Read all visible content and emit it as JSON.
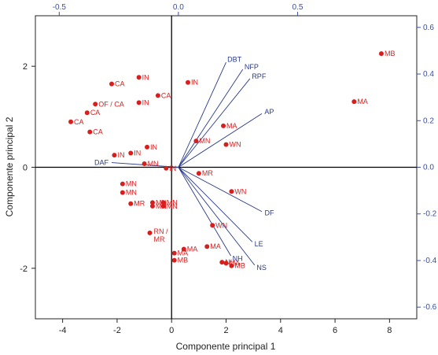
{
  "chart_data": {
    "type": "scatter",
    "title": "",
    "xlabel": "Componente principal 1",
    "ylabel": "Componente principal 2",
    "xlim": [
      -5,
      9
    ],
    "ylim": [
      -3,
      3
    ],
    "x_ticks": [
      "-4",
      "-2",
      "0",
      "2",
      "4",
      "6",
      "8"
    ],
    "y_ticks": [
      "-2",
      "0",
      "2"
    ],
    "secondary_xlim": [
      -0.6,
      1.0
    ],
    "secondary_ylim": [
      -0.65,
      0.65
    ],
    "secondary_x_ticks": [
      "-0.5",
      "0.0",
      "0.5"
    ],
    "secondary_y_ticks": [
      "0.6",
      "0.4",
      "0.2",
      "0.0",
      "-0.2",
      "-0.4",
      "-0.6"
    ],
    "origin_lines": true,
    "grid": false,
    "colors": {
      "points": "#d91e1e",
      "vectors": "#2a3a8a",
      "secondary_axes": "#3a4fa0",
      "primary_axes": "#222222"
    },
    "series": [
      {
        "kind": "points",
        "points": [
          {
            "label": "MB",
            "x": 7.7,
            "y": 2.25
          },
          {
            "label": "MA",
            "x": 6.7,
            "y": 1.3
          },
          {
            "label": "CA",
            "x": -2.2,
            "y": 1.65
          },
          {
            "label": "IN",
            "x": -1.2,
            "y": 1.78
          },
          {
            "label": "IN",
            "x": 0.6,
            "y": 1.68
          },
          {
            "label": "CA",
            "x": -0.5,
            "y": 1.42
          },
          {
            "label": "IN",
            "x": -1.2,
            "y": 1.28
          },
          {
            "label": "OF / CA",
            "x": -2.8,
            "y": 1.25
          },
          {
            "label": "CA",
            "x": -3.1,
            "y": 1.08
          },
          {
            "label": "CA",
            "x": -3.7,
            "y": 0.9
          },
          {
            "label": "CA",
            "x": -3.0,
            "y": 0.7
          },
          {
            "label": "MA",
            "x": 1.9,
            "y": 0.82
          },
          {
            "label": "MN",
            "x": 0.9,
            "y": 0.52
          },
          {
            "label": "WN",
            "x": 2.0,
            "y": 0.45
          },
          {
            "label": "IN",
            "x": -0.9,
            "y": 0.4
          },
          {
            "label": "IN",
            "x": -1.5,
            "y": 0.28
          },
          {
            "label": "IN",
            "x": -2.1,
            "y": 0.24
          },
          {
            "label": "MN",
            "x": -1.0,
            "y": 0.07
          },
          {
            "label": "IN",
            "x": -0.2,
            "y": -0.02
          },
          {
            "label": "MR",
            "x": 1.0,
            "y": -0.12
          },
          {
            "label": "WN",
            "x": 2.2,
            "y": -0.48
          },
          {
            "label": "MN",
            "x": -1.8,
            "y": -0.33
          },
          {
            "label": "MN",
            "x": -1.8,
            "y": -0.5
          },
          {
            "label": "MR",
            "x": -1.5,
            "y": -0.72
          },
          {
            "label": "MN",
            "x": -0.7,
            "y": -0.7
          },
          {
            "label": "MN",
            "x": -0.7,
            "y": -0.77
          },
          {
            "label": "MN",
            "x": -0.3,
            "y": -0.7
          },
          {
            "label": "MN",
            "x": -0.3,
            "y": -0.77
          },
          {
            "label": "WN",
            "x": 1.5,
            "y": -1.15
          },
          {
            "label": "RN / MR",
            "x": -0.8,
            "y": -1.3
          },
          {
            "label": "MA",
            "x": 1.3,
            "y": -1.57
          },
          {
            "label": "MA",
            "x": 0.45,
            "y": -1.62
          },
          {
            "label": "MA",
            "x": 0.1,
            "y": -1.7
          },
          {
            "label": "MB",
            "x": 0.1,
            "y": -1.84
          },
          {
            "label": "NH",
            "x": 1.85,
            "y": -1.88
          },
          {
            "label": "MA",
            "x": 2.0,
            "y": -1.9
          },
          {
            "label": "MB",
            "x": 2.2,
            "y": -1.95
          }
        ]
      },
      {
        "kind": "vectors",
        "vectors": [
          {
            "label": "DBT",
            "x": 0.2,
            "y": 0.45
          },
          {
            "label": "NFP",
            "x": 0.27,
            "y": 0.42
          },
          {
            "label": "RPF",
            "x": 0.3,
            "y": 0.38
          },
          {
            "label": "AP",
            "x": 0.35,
            "y": 0.23
          },
          {
            "label": "DAF",
            "x": -0.28,
            "y": 0.02
          },
          {
            "label": "DF",
            "x": 0.35,
            "y": -0.19
          },
          {
            "label": "LE",
            "x": 0.31,
            "y": -0.32
          },
          {
            "label": "NS",
            "x": 0.32,
            "y": -0.42
          },
          {
            "label": "NH",
            "x": 0.22,
            "y": -0.38
          }
        ]
      }
    ]
  }
}
